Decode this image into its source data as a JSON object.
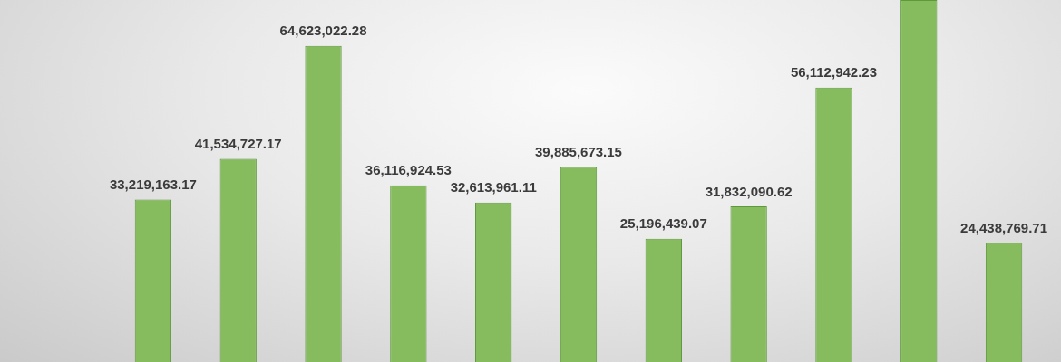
{
  "chart_data": {
    "type": "bar",
    "categories": [
      null,
      null,
      null,
      null,
      null,
      null,
      null,
      null,
      null,
      null,
      null
    ],
    "values": [
      33219163.17,
      41534727.17,
      64623022.28,
      36116924.53,
      32613961.11,
      39885673.15,
      25196439.07,
      31832090.62,
      56112942.23,
      74000000,
      24438769.71
    ],
    "value_labels": [
      "33,219,163.17",
      "41,534,727.17",
      "64,623,022.28",
      "36,116,924.53",
      "32,613,961.11",
      "39,885,673.15",
      "25,196,439.07",
      "31,832,090.62",
      "56,112,942.23",
      null,
      "24,438,769.71"
    ],
    "color": "#86bb5e",
    "tick_labels": false,
    "grid": false,
    "legend": false
  }
}
